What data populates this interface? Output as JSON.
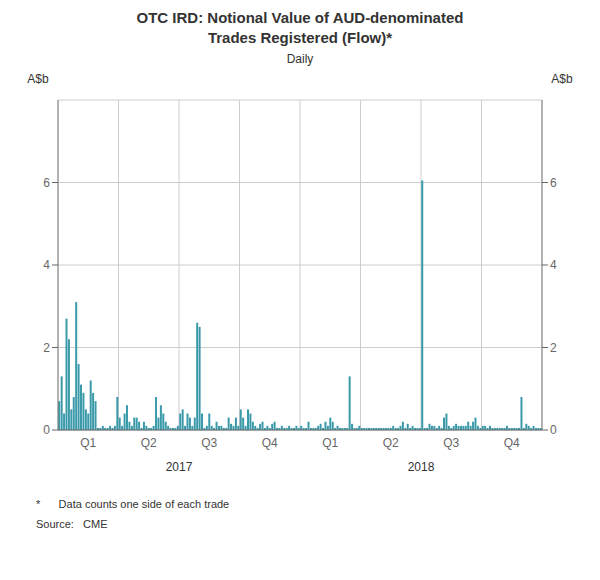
{
  "chart_data": {
    "type": "bar",
    "title": "OTC IRD: Notional Value of AUD-denominated\nTrades Registered (Flow)*",
    "subtitle": "Daily",
    "y_label": "A$b",
    "y2_label": "A$b",
    "ylim": [
      0,
      8
    ],
    "yticks": [
      0,
      2,
      4,
      6
    ],
    "y2lim": [
      0,
      8
    ],
    "y2ticks": [
      0,
      2,
      4,
      6
    ],
    "color": "#3a9aaa",
    "grid": true,
    "year_labels": [
      "2017",
      "2018"
    ],
    "footnotes": [
      "*      Data counts one side of each trade",
      "Source:   CME"
    ],
    "categories": [
      null,
      null,
      null,
      null,
      null,
      null,
      null,
      null,
      null,
      null,
      null,
      null,
      "Q1",
      null,
      null,
      null,
      null,
      null,
      null,
      null,
      null,
      null,
      null,
      null,
      null,
      null,
      null,
      null,
      null,
      null,
      null,
      null,
      null,
      null,
      null,
      null,
      null,
      "Q2",
      null,
      null,
      null,
      null,
      null,
      null,
      null,
      null,
      null,
      null,
      null,
      null,
      null,
      null,
      null,
      null,
      null,
      null,
      null,
      null,
      null,
      null,
      null,
      null,
      "Q3",
      null,
      null,
      null,
      null,
      null,
      null,
      null,
      null,
      null,
      null,
      null,
      null,
      null,
      null,
      null,
      null,
      null,
      null,
      null,
      null,
      null,
      null,
      null,
      null,
      "Q4",
      null,
      null,
      null,
      null,
      null,
      null,
      null,
      null,
      null,
      null,
      null,
      null,
      null,
      null,
      null,
      null,
      null,
      null,
      null,
      null,
      null,
      null,
      null,
      null,
      "Q1",
      null,
      null,
      null,
      null,
      null,
      null,
      null,
      null,
      null,
      null,
      null,
      null,
      null,
      null,
      null,
      null,
      null,
      null,
      null,
      null,
      null,
      null,
      null,
      null,
      "Q2",
      null,
      null,
      null,
      null,
      null,
      null,
      null,
      null,
      null,
      null,
      null,
      null,
      null,
      null,
      null,
      null,
      null,
      null,
      null,
      null,
      null,
      null,
      null,
      null,
      "Q3",
      null,
      null,
      null,
      null,
      null,
      null,
      null,
      null,
      null,
      null,
      null,
      null,
      null,
      null,
      null,
      null,
      null,
      null,
      null,
      null,
      null,
      null,
      null,
      null,
      "Q4",
      null,
      null,
      null,
      null,
      null,
      null,
      null,
      null,
      null,
      null,
      null,
      null
    ],
    "values": [
      0.7,
      1.3,
      0.4,
      2.7,
      2.2,
      0.5,
      0.8,
      3.1,
      1.6,
      1.1,
      0.9,
      0.5,
      0.4,
      1.2,
      0.9,
      0.7,
      0.05,
      0.05,
      0.1,
      0.05,
      0.05,
      0.1,
      0.05,
      0.1,
      0.8,
      0.3,
      0.1,
      0.4,
      0.6,
      0.2,
      0.1,
      0.3,
      0.3,
      0.2,
      0.05,
      0.2,
      0.1,
      0.05,
      0.05,
      0.1,
      0.8,
      0.3,
      0.6,
      0.4,
      0.2,
      0.1,
      0.05,
      0.05,
      0.05,
      0.1,
      0.4,
      0.5,
      0.1,
      0.4,
      0.3,
      0.1,
      0.3,
      2.6,
      2.5,
      0.4,
      0.05,
      0.1,
      0.4,
      0.1,
      0.05,
      0.2,
      0.1,
      0.1,
      0.05,
      0.05,
      0.3,
      0.15,
      0.1,
      0.3,
      0.1,
      0.5,
      0.3,
      0.1,
      0.5,
      0.4,
      0.2,
      0.1,
      0.05,
      0.15,
      0.2,
      0.05,
      0.1,
      0.05,
      0.15,
      0.2,
      0.05,
      0.05,
      0.1,
      0.05,
      0.05,
      0.1,
      0.05,
      0.05,
      0.1,
      0.05,
      0.1,
      0.05,
      0.05,
      0.2,
      0.05,
      0.05,
      0.05,
      0.1,
      0.15,
      0.05,
      0.2,
      0.1,
      0.3,
      0.2,
      0.05,
      0.1,
      0.05,
      0.05,
      0.05,
      0.05,
      1.3,
      0.15,
      0.05,
      0.05,
      0.1,
      0.05,
      0.05,
      0.05,
      0.05,
      0.05,
      0.05,
      0.05,
      0.05,
      0.05,
      0.05,
      0.05,
      0.05,
      0.05,
      0.1,
      0.05,
      0.05,
      0.1,
      0.2,
      0.05,
      0.15,
      0.05,
      0.1,
      0.05,
      0.05,
      0.05,
      6.05,
      0.05,
      0.05,
      0.15,
      0.1,
      0.1,
      0.05,
      0.1,
      0.05,
      0.3,
      0.4,
      0.1,
      0.05,
      0.1,
      0.15,
      0.1,
      0.1,
      0.1,
      0.1,
      0.2,
      0.1,
      0.2,
      0.3,
      0.1,
      0.05,
      0.1,
      0.1,
      0.05,
      0.1,
      0.05,
      0.05,
      0.05,
      0.05,
      0.05,
      0.05,
      0.1,
      0.05,
      0.05,
      0.05,
      0.05,
      0.05,
      0.8,
      0.05,
      0.15,
      0.1,
      0.05,
      0.1,
      0.05,
      0.05,
      0.05
    ]
  }
}
